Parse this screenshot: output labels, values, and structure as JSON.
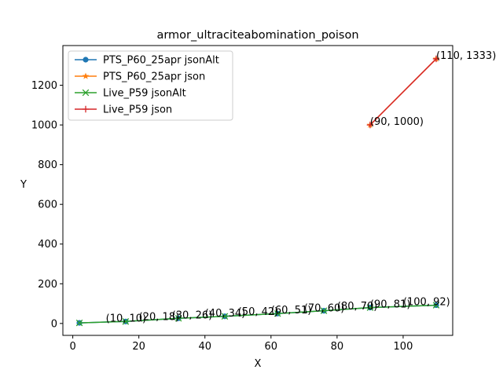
{
  "chart_data": {
    "type": "line",
    "title": "armor_ultraciteabomination_poison",
    "xlabel": "X",
    "ylabel": "Y",
    "xlim": [
      -3,
      115
    ],
    "ylim": [
      -60,
      1400
    ],
    "xticks": [
      0,
      20,
      40,
      60,
      80,
      100
    ],
    "yticks": [
      0,
      200,
      400,
      600,
      800,
      1000,
      1200
    ],
    "grid": false,
    "legend_position": "top-left",
    "series": [
      {
        "name": "PTS_P60_25apr jsonAlt",
        "color": "#1f77b4",
        "marker": "circle",
        "x": [
          2,
          16,
          32,
          46,
          62,
          76,
          90,
          110
        ],
        "y": [
          3,
          10,
          26,
          36,
          50,
          64,
          80,
          92
        ]
      },
      {
        "name": "PTS_P60_25apr json",
        "color": "#ff7f0e",
        "marker": "star",
        "x": [
          90,
          110
        ],
        "y": [
          1000,
          1333
        ]
      },
      {
        "name": "Live_P59 jsonAlt",
        "color": "#2ca02c",
        "marker": "x",
        "x": [
          2,
          16,
          32,
          46,
          62,
          76,
          90,
          110
        ],
        "y": [
          3,
          10,
          26,
          36,
          50,
          64,
          80,
          92
        ]
      },
      {
        "name": "Live_P59 json",
        "color": "#d62728",
        "marker": "plus",
        "x": [
          90,
          110
        ],
        "y": [
          1000,
          1333
        ]
      }
    ],
    "annotations": [
      {
        "text": "(10, 10)",
        "x": 10,
        "y": 10
      },
      {
        "text": "(20, 18)",
        "x": 20,
        "y": 18
      },
      {
        "text": "(30, 26)",
        "x": 30,
        "y": 26
      },
      {
        "text": "(40, 34)",
        "x": 40,
        "y": 34
      },
      {
        "text": "(50, 42)",
        "x": 50,
        "y": 42
      },
      {
        "text": "(60, 51)",
        "x": 60,
        "y": 51
      },
      {
        "text": "(70, 60)",
        "x": 70,
        "y": 60
      },
      {
        "text": "(80, 70)",
        "x": 80,
        "y": 70
      },
      {
        "text": "(90, 81)",
        "x": 90,
        "y": 81
      },
      {
        "text": "(100, 92)",
        "x": 100,
        "y": 92
      },
      {
        "text": "(90, 1000)",
        "x": 90,
        "y": 1000
      },
      {
        "text": "(110, 1333)",
        "x": 110,
        "y": 1333
      }
    ]
  }
}
